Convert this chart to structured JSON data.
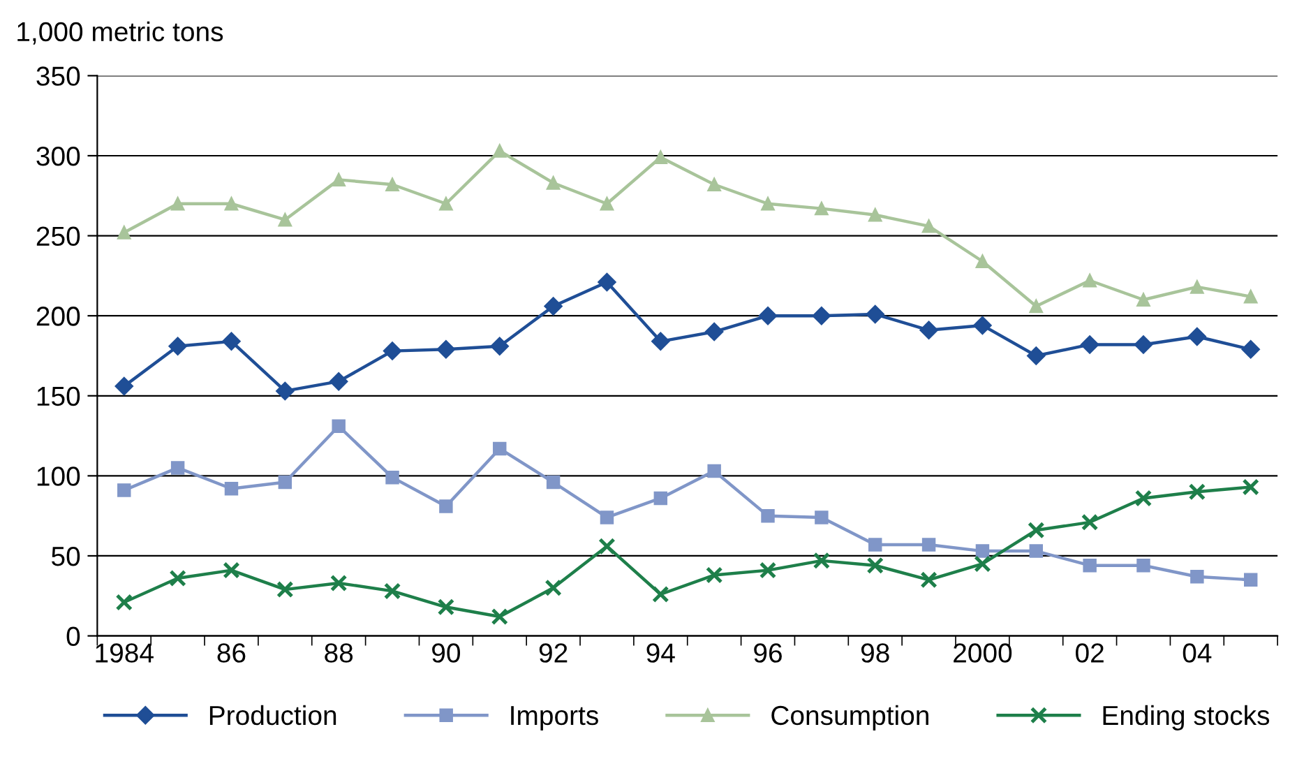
{
  "chart_data": {
    "type": "line",
    "ylabel": "1,000 metric tons",
    "categories": [
      "1984",
      null,
      "86",
      null,
      "88",
      null,
      "90",
      null,
      "92",
      null,
      "94",
      null,
      "96",
      null,
      "98",
      null,
      "2000",
      null,
      "02",
      null,
      "04",
      null
    ],
    "series": [
      {
        "name": "Production",
        "color": "#1f4e96",
        "marker": "diamond",
        "values": [
          156,
          181,
          184,
          153,
          159,
          178,
          179,
          181,
          206,
          221,
          184,
          190,
          200,
          200,
          201,
          191,
          194,
          175,
          182,
          182,
          187,
          179
        ]
      },
      {
        "name": "Imports",
        "color": "#8096c8",
        "marker": "square",
        "values": [
          91,
          105,
          92,
          96,
          131,
          99,
          81,
          117,
          96,
          74,
          86,
          103,
          75,
          74,
          57,
          57,
          53,
          53,
          44,
          44,
          37,
          35
        ]
      },
      {
        "name": "Consumption",
        "color": "#a8c49a",
        "marker": "triangle",
        "values": [
          252,
          270,
          270,
          260,
          285,
          282,
          270,
          303,
          283,
          270,
          299,
          282,
          270,
          267,
          263,
          256,
          234,
          206,
          222,
          210,
          218,
          212
        ]
      },
      {
        "name": "Ending stocks",
        "color": "#1e7f4a",
        "marker": "cross",
        "values": [
          21,
          36,
          41,
          29,
          33,
          28,
          18,
          12,
          30,
          56,
          26,
          38,
          41,
          47,
          44,
          35,
          45,
          66,
          71,
          86,
          90,
          93
        ]
      }
    ],
    "ylim": [
      0,
      350
    ],
    "yticks": [
      0,
      50,
      100,
      150,
      200,
      250,
      300,
      350
    ],
    "grid": "y",
    "legend": "bottom",
    "line_style": "solid"
  }
}
